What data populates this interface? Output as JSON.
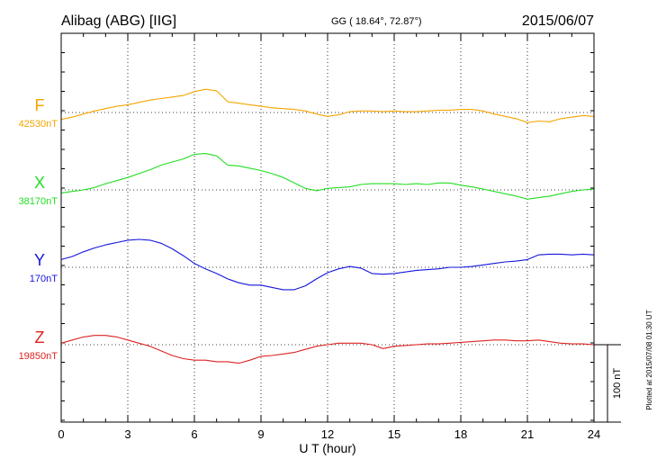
{
  "header": {
    "station": "Alibag (ABG)  [IIG]",
    "coords": "GG ( 18.64°,  72.87°)",
    "date": "2015/06/07"
  },
  "plotted_note": "Plotted at 2015/07/08 01:30 UT",
  "chart_data": {
    "type": "line",
    "xlabel": "U T (hour)",
    "xlim": [
      0,
      24
    ],
    "x_ticks": [
      0,
      3,
      6,
      9,
      12,
      15,
      18,
      21,
      24
    ],
    "scale_bar_label": "100 nT",
    "scale_bar_nT": 100,
    "grid": true,
    "series": [
      {
        "name": "F",
        "baseline_label": "42530nT",
        "color": "#f5a500",
        "x": [
          0,
          0.5,
          1,
          1.5,
          2,
          2.5,
          3,
          3.5,
          4,
          4.5,
          5,
          5.5,
          6,
          6.5,
          7,
          7.5,
          8,
          8.5,
          9,
          9.5,
          10,
          10.5,
          11,
          11.5,
          12,
          12.5,
          13,
          13.5,
          14,
          14.5,
          15,
          15.5,
          16,
          16.5,
          17,
          17.5,
          18,
          18.5,
          19,
          19.5,
          20,
          20.5,
          21,
          21.5,
          22,
          22.5,
          23,
          23.5,
          24
        ],
        "values": [
          -9,
          -6,
          -2,
          2,
          5,
          8,
          10,
          13,
          16,
          18,
          20,
          22,
          27,
          30,
          28,
          14,
          12,
          10,
          8,
          6,
          5,
          4,
          2,
          -2,
          -5,
          -3,
          1,
          2,
          2,
          1,
          2,
          1,
          1,
          2,
          3,
          3,
          4,
          4,
          2,
          -2,
          -5,
          -8,
          -13,
          -11,
          -12,
          -8,
          -6,
          -4,
          -5
        ]
      },
      {
        "name": "X",
        "baseline_label": "38170nT",
        "color": "#22dd22",
        "x": [
          0,
          0.5,
          1,
          1.5,
          2,
          2.5,
          3,
          3.5,
          4,
          4.5,
          5,
          5.5,
          6,
          6.5,
          7,
          7.5,
          8,
          8.5,
          9,
          9.5,
          10,
          10.5,
          11,
          11.5,
          12,
          12.5,
          13,
          13.5,
          14,
          14.5,
          15,
          15.5,
          16,
          16.5,
          17,
          17.5,
          18,
          18.5,
          19,
          19.5,
          20,
          20.5,
          21,
          21.5,
          22,
          22.5,
          23,
          23.5,
          24
        ],
        "values": [
          -4,
          -2,
          0,
          3,
          8,
          12,
          16,
          21,
          26,
          32,
          36,
          40,
          46,
          47,
          44,
          32,
          31,
          28,
          25,
          21,
          16,
          9,
          2,
          -1,
          2,
          3,
          4,
          7,
          8,
          8,
          8,
          7,
          8,
          7,
          9,
          9,
          6,
          4,
          1,
          -2,
          -5,
          -8,
          -12,
          -10,
          -8,
          -5,
          -2,
          0,
          1
        ]
      },
      {
        "name": "Y",
        "baseline_label": "170nT",
        "color": "#1515dd",
        "x": [
          0,
          0.5,
          1,
          1.5,
          2,
          2.5,
          3,
          3.5,
          4,
          4.5,
          5,
          5.5,
          6,
          6.5,
          7,
          7.5,
          8,
          8.5,
          9,
          9.5,
          10,
          10.5,
          11,
          11.5,
          12,
          12.5,
          13,
          13.5,
          14,
          14.5,
          15,
          15.5,
          16,
          16.5,
          17,
          17.5,
          18,
          18.5,
          19,
          19.5,
          20,
          20.5,
          21,
          21.5,
          22,
          22.5,
          23,
          23.5,
          24
        ],
        "values": [
          10,
          14,
          20,
          25,
          29,
          32,
          35,
          36,
          35,
          31,
          24,
          15,
          5,
          -2,
          -8,
          -15,
          -20,
          -23,
          -23,
          -26,
          -29,
          -29,
          -24,
          -15,
          -7,
          -2,
          1,
          -1,
          -8,
          -9,
          -8,
          -6,
          -4,
          -3,
          -2,
          0,
          0,
          1,
          3,
          5,
          7,
          8,
          10,
          16,
          17,
          17,
          16,
          17,
          16
        ]
      },
      {
        "name": "Z",
        "baseline_label": "19850nT",
        "color": "#dd2222",
        "x": [
          0,
          0.5,
          1,
          1.5,
          2,
          2.5,
          3,
          3.5,
          4,
          4.5,
          5,
          5.5,
          6,
          6.5,
          7,
          7.5,
          8,
          8.5,
          9,
          9.5,
          10,
          10.5,
          11,
          11.5,
          12,
          12.5,
          13,
          13.5,
          14,
          14.5,
          15,
          15.5,
          16,
          16.5,
          17,
          17.5,
          18,
          18.5,
          19,
          19.5,
          20,
          20.5,
          21,
          21.5,
          22,
          22.5,
          23,
          23.5,
          24
        ],
        "values": [
          2,
          6,
          10,
          12,
          12,
          10,
          6,
          2,
          -2,
          -8,
          -14,
          -18,
          -20,
          -20,
          -22,
          -22,
          -24,
          -20,
          -15,
          -14,
          -12,
          -10,
          -6,
          -2,
          0,
          2,
          2,
          2,
          0,
          -5,
          -2,
          -1,
          0,
          1,
          1,
          2,
          3,
          4,
          5,
          6,
          6,
          5,
          5,
          6,
          4,
          2,
          1,
          1,
          0
        ]
      }
    ]
  }
}
